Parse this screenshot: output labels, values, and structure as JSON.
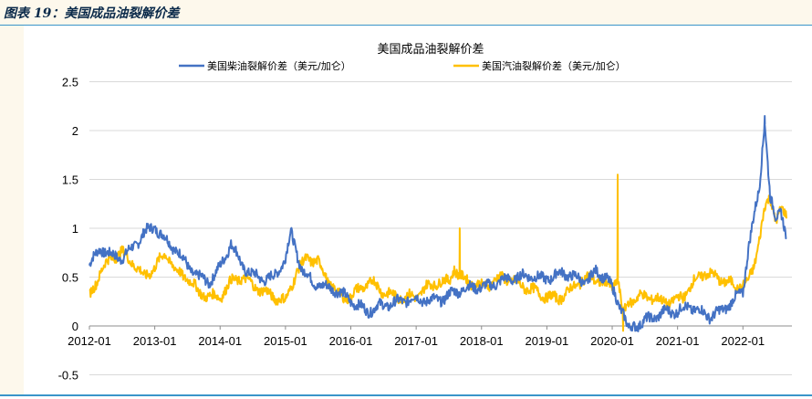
{
  "caption": "图表 19：美国成品油裂解价差",
  "chart_data": {
    "type": "line",
    "title": "美国成品油裂解价差",
    "xlabel": "",
    "ylabel": "",
    "ylim": [
      -0.5,
      2.5
    ],
    "yticks": [
      "2.5",
      "2",
      "1.5",
      "1",
      "0.5",
      "0",
      "-0.5"
    ],
    "xticks": [
      "2012-01",
      "2013-01",
      "2014-01",
      "2015-01",
      "2016-01",
      "2017-01",
      "2018-01",
      "2019-01",
      "2020-01",
      "2021-01",
      "2022-01"
    ],
    "grid": "horizontal",
    "legend_position": "top",
    "series": [
      {
        "name": "美国柴油裂解价差（美元/加仑）",
        "color": "#4472c4",
        "points": [
          [
            "2012-01",
            0.62
          ],
          [
            "2012-03",
            0.8
          ],
          [
            "2012-05",
            0.72
          ],
          [
            "2012-07",
            0.7
          ],
          [
            "2012-09",
            0.8
          ],
          [
            "2012-11",
            0.95
          ],
          [
            "2013-01",
            1.02
          ],
          [
            "2013-03",
            0.88
          ],
          [
            "2013-05",
            0.78
          ],
          [
            "2013-07",
            0.62
          ],
          [
            "2013-09",
            0.5
          ],
          [
            "2013-11",
            0.45
          ],
          [
            "2014-01",
            0.6
          ],
          [
            "2014-03",
            0.85
          ],
          [
            "2014-05",
            0.62
          ],
          [
            "2014-07",
            0.52
          ],
          [
            "2014-09",
            0.48
          ],
          [
            "2014-11",
            0.5
          ],
          [
            "2015-01",
            0.7
          ],
          [
            "2015-02",
            0.95
          ],
          [
            "2015-04",
            0.58
          ],
          [
            "2015-06",
            0.45
          ],
          [
            "2015-08",
            0.4
          ],
          [
            "2015-10",
            0.38
          ],
          [
            "2015-12",
            0.3
          ],
          [
            "2016-02",
            0.22
          ],
          [
            "2016-04",
            0.15
          ],
          [
            "2016-06",
            0.2
          ],
          [
            "2016-08",
            0.22
          ],
          [
            "2016-10",
            0.25
          ],
          [
            "2016-12",
            0.28
          ],
          [
            "2017-02",
            0.27
          ],
          [
            "2017-04",
            0.26
          ],
          [
            "2017-06",
            0.28
          ],
          [
            "2017-08",
            0.35
          ],
          [
            "2017-10",
            0.38
          ],
          [
            "2017-12",
            0.4
          ],
          [
            "2018-02",
            0.4
          ],
          [
            "2018-04",
            0.45
          ],
          [
            "2018-06",
            0.48
          ],
          [
            "2018-08",
            0.5
          ],
          [
            "2018-10",
            0.52
          ],
          [
            "2018-12",
            0.48
          ],
          [
            "2019-02",
            0.5
          ],
          [
            "2019-04",
            0.55
          ],
          [
            "2019-06",
            0.5
          ],
          [
            "2019-08",
            0.45
          ],
          [
            "2019-10",
            0.55
          ],
          [
            "2019-12",
            0.5
          ],
          [
            "2020-02",
            0.25
          ],
          [
            "2020-03",
            0.15
          ],
          [
            "2020-04",
            -0.05
          ],
          [
            "2020-05",
            0.0
          ],
          [
            "2020-07",
            0.05
          ],
          [
            "2020-09",
            0.1
          ],
          [
            "2020-11",
            0.15
          ],
          [
            "2021-01",
            0.15
          ],
          [
            "2021-03",
            0.2
          ],
          [
            "2021-05",
            0.15
          ],
          [
            "2021-07",
            0.1
          ],
          [
            "2021-09",
            0.15
          ],
          [
            "2021-11",
            0.25
          ],
          [
            "2022-01",
            0.35
          ],
          [
            "2022-02",
            0.8
          ],
          [
            "2022-03",
            1.1
          ],
          [
            "2022-04",
            1.4
          ],
          [
            "2022-05",
            2.12
          ],
          [
            "2022-06",
            1.3
          ],
          [
            "2022-07",
            1.1
          ],
          [
            "2022-08",
            1.2
          ],
          [
            "2022-09",
            0.9
          ]
        ]
      },
      {
        "name": "美国汽油裂解价差（美元/加仑）",
        "color": "#ffc000",
        "points": [
          [
            "2012-01",
            0.3
          ],
          [
            "2012-03",
            0.55
          ],
          [
            "2012-05",
            0.7
          ],
          [
            "2012-07",
            0.75
          ],
          [
            "2012-09",
            0.65
          ],
          [
            "2012-11",
            0.5
          ],
          [
            "2013-01",
            0.6
          ],
          [
            "2013-03",
            0.75
          ],
          [
            "2013-05",
            0.55
          ],
          [
            "2013-07",
            0.5
          ],
          [
            "2013-09",
            0.35
          ],
          [
            "2013-11",
            0.3
          ],
          [
            "2014-01",
            0.3
          ],
          [
            "2014-03",
            0.45
          ],
          [
            "2014-05",
            0.5
          ],
          [
            "2014-07",
            0.42
          ],
          [
            "2014-09",
            0.35
          ],
          [
            "2014-11",
            0.3
          ],
          [
            "2015-01",
            0.25
          ],
          [
            "2015-03",
            0.55
          ],
          [
            "2015-05",
            0.7
          ],
          [
            "2015-07",
            0.65
          ],
          [
            "2015-09",
            0.45
          ],
          [
            "2015-11",
            0.3
          ],
          [
            "2016-01",
            0.3
          ],
          [
            "2016-03",
            0.4
          ],
          [
            "2016-05",
            0.45
          ],
          [
            "2016-07",
            0.35
          ],
          [
            "2016-09",
            0.3
          ],
          [
            "2016-11",
            0.3
          ],
          [
            "2017-01",
            0.3
          ],
          [
            "2017-03",
            0.4
          ],
          [
            "2017-05",
            0.45
          ],
          [
            "2017-07",
            0.45
          ],
          [
            "2017-08",
            0.6
          ],
          [
            "2017-09",
            0.5
          ],
          [
            "2017-11",
            0.45
          ],
          [
            "2018-01",
            0.4
          ],
          [
            "2018-03",
            0.45
          ],
          [
            "2018-05",
            0.5
          ],
          [
            "2018-07",
            0.45
          ],
          [
            "2018-09",
            0.4
          ],
          [
            "2018-11",
            0.35
          ],
          [
            "2019-01",
            0.3
          ],
          [
            "2019-03",
            0.28
          ],
          [
            "2019-05",
            0.35
          ],
          [
            "2019-07",
            0.45
          ],
          [
            "2019-09",
            0.5
          ],
          [
            "2019-11",
            0.45
          ],
          [
            "2020-01",
            0.4
          ],
          [
            "2020-02",
            0.5
          ],
          [
            "2020-03",
            0.1
          ],
          [
            "2020-04",
            0.25
          ],
          [
            "2020-06",
            0.3
          ],
          [
            "2020-08",
            0.3
          ],
          [
            "2020-10",
            0.25
          ],
          [
            "2020-12",
            0.25
          ],
          [
            "2021-02",
            0.3
          ],
          [
            "2021-04",
            0.45
          ],
          [
            "2021-06",
            0.55
          ],
          [
            "2021-08",
            0.5
          ],
          [
            "2021-10",
            0.45
          ],
          [
            "2021-12",
            0.4
          ],
          [
            "2022-02",
            0.45
          ],
          [
            "2022-03",
            0.6
          ],
          [
            "2022-04",
            0.9
          ],
          [
            "2022-05",
            1.2
          ],
          [
            "2022-06",
            1.3
          ],
          [
            "2022-07",
            1.1
          ],
          [
            "2022-08",
            1.2
          ],
          [
            "2022-09",
            1.1
          ]
        ]
      }
    ],
    "annotations": [
      {
        "series": 0,
        "date": "2022-05",
        "value": 2.15,
        "label": ""
      },
      {
        "series": 1,
        "date": "2020-02",
        "value": 1.55,
        "label": ""
      },
      {
        "series": 1,
        "date": "2020-03",
        "value": -0.05,
        "label": ""
      },
      {
        "series": 1,
        "date": "2017-09",
        "value": 1.0,
        "label": ""
      }
    ]
  }
}
